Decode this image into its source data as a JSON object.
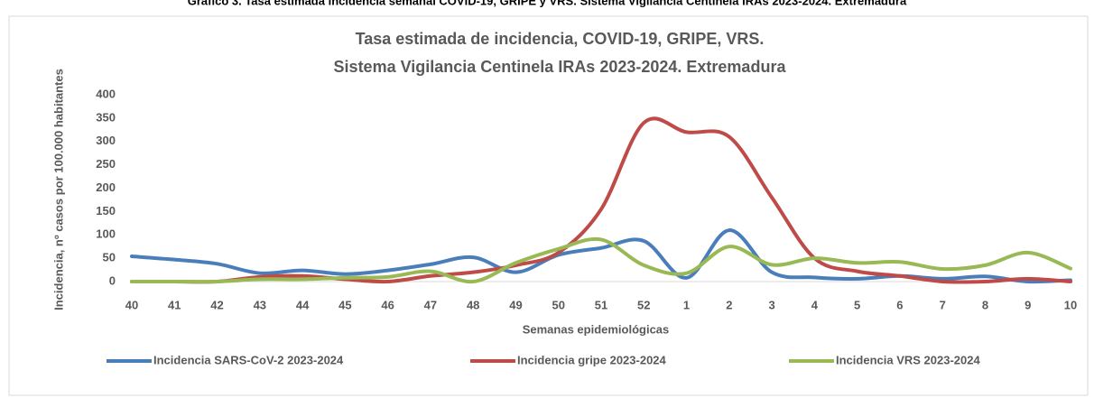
{
  "header": "Gráfico 3. Tasa estimada incidencia semanal COVID-19, GRIPE y VRS. Sistema Vigilancia Centinela IRAs 2023-2024. Extremadura",
  "chart_data": {
    "type": "line",
    "title": "Tasa estimada de incidencia, COVID-19, GRIPE, VRS.",
    "subtitle": "Sistema Vigilancia Centinela IRAs 2023-2024. Extremadura",
    "x_label": "Semanas epidemiológicas",
    "y_label": "Incidencia, nº casos por 100.000 habitantes",
    "categories": [
      "40",
      "41",
      "42",
      "43",
      "44",
      "45",
      "46",
      "47",
      "48",
      "49",
      "50",
      "51",
      "52",
      "1",
      "2",
      "3",
      "4",
      "5",
      "6",
      "7",
      "8",
      "9",
      "10"
    ],
    "ylim": [
      0,
      400
    ],
    "yticks": [
      0,
      50,
      100,
      150,
      200,
      250,
      300,
      350,
      400
    ],
    "series": [
      {
        "name": "Incidencia SARS-CoV-2 2023-2024",
        "color": "#4a7ebb",
        "values": [
          54,
          47,
          38,
          18,
          24,
          16,
          24,
          37,
          52,
          20,
          57,
          72,
          87,
          8,
          110,
          20,
          9,
          6,
          12,
          6,
          11,
          0,
          3
        ]
      },
      {
        "name": "Incidencia gripe 2023-2024",
        "color": "#be4b48",
        "values": [
          0,
          0,
          0,
          10,
          12,
          5,
          0,
          12,
          20,
          35,
          62,
          155,
          340,
          320,
          310,
          180,
          50,
          22,
          12,
          0,
          0,
          6,
          0
        ]
      },
      {
        "name": "Incidencia VRS 2023-2024",
        "color": "#98b954",
        "values": [
          0,
          0,
          0,
          5,
          5,
          8,
          10,
          22,
          0,
          40,
          70,
          90,
          35,
          18,
          75,
          36,
          50,
          40,
          42,
          27,
          35,
          62,
          28
        ]
      }
    ]
  }
}
